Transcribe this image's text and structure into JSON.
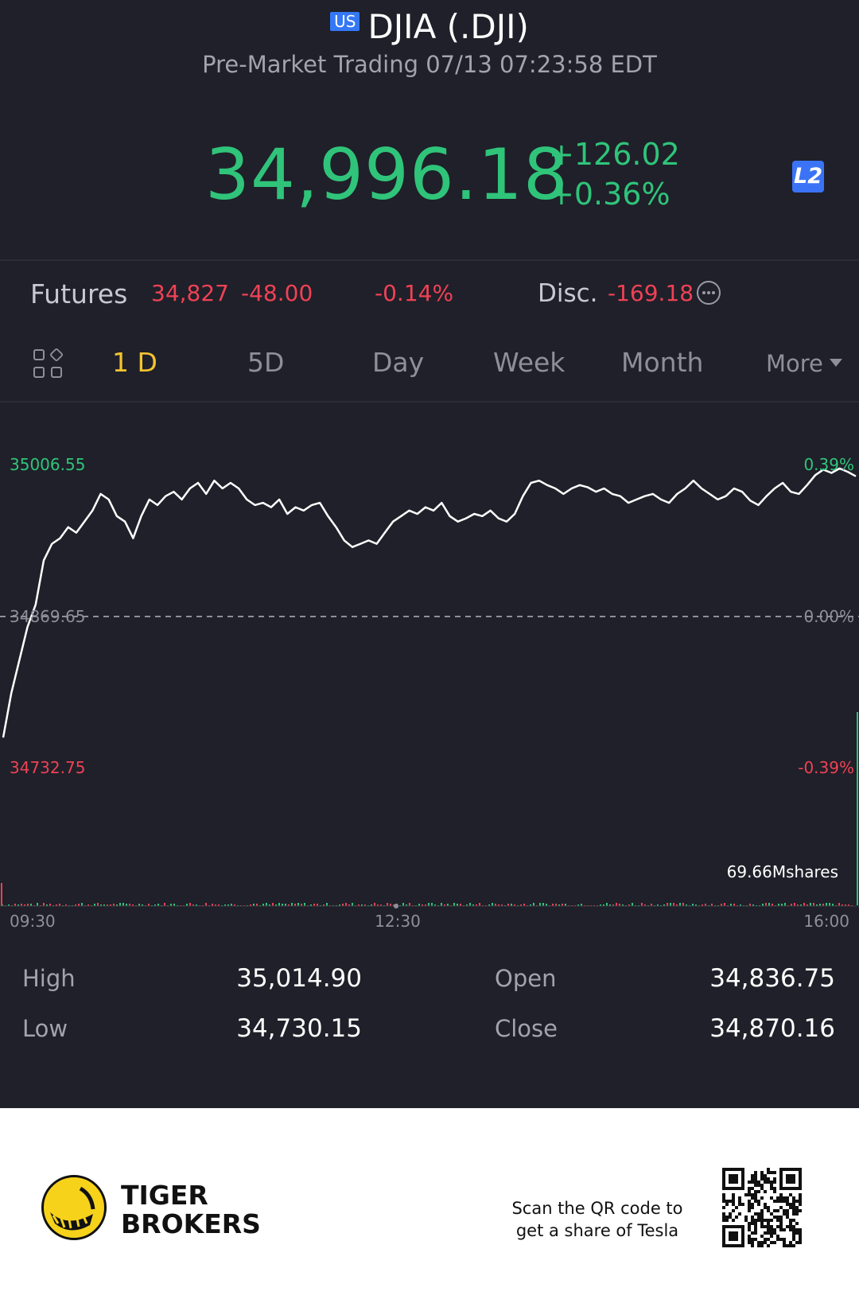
{
  "header": {
    "market_badge": "US",
    "title": "DJIA (.DJI)",
    "subtitle": "Pre-Market Trading 07/13 07:23:58 EDT",
    "price": "34,996.18",
    "change": "+126.02",
    "change_pct": "+0.36%",
    "l2_badge": "L2"
  },
  "futures": {
    "label": "Futures",
    "price": "34,827",
    "change": "-48.00",
    "change_pct": "-0.14%",
    "disc_label": "Disc.",
    "disc_value": "-169.18"
  },
  "tabs": {
    "items": [
      "1 D",
      "5D",
      "Day",
      "Week",
      "Month"
    ],
    "more": "More",
    "active": "1 D"
  },
  "chart_data": {
    "type": "line",
    "y_labels": {
      "high": "35006.55",
      "mid": "34869.65",
      "low": "34732.75",
      "high_pct": "0.39%",
      "mid_pct": "0.00%",
      "low_pct": "-0.39%"
    },
    "ylim": [
      34732.75,
      35006.55
    ],
    "reference_line": 34869.65,
    "volume_label": "69.66Mshares",
    "x_ticks": [
      "09:30",
      "12:30",
      "16:00"
    ],
    "series": [
      {
        "values": [
          34760,
          34800,
          34830,
          34860,
          34880,
          34920,
          34935,
          34940,
          34950,
          34945,
          34955,
          34965,
          34980,
          34975,
          34960,
          34955,
          34940,
          34960,
          34975,
          34970,
          34978,
          34982,
          34975,
          34985,
          34990,
          34980,
          34992,
          34985,
          34990,
          34985,
          34975,
          34970,
          34972,
          34968,
          34975,
          34962,
          34968,
          34965,
          34970,
          34972,
          34960,
          34950,
          34938,
          34932,
          34935,
          34938,
          34935,
          34945,
          34955,
          34960,
          34965,
          34962,
          34968,
          34965,
          34972,
          34960,
          34955,
          34958,
          34962,
          34960,
          34965,
          34958,
          34955,
          34962,
          34978,
          34990,
          34992,
          34988,
          34985,
          34980,
          34985,
          34988,
          34986,
          34982,
          34985,
          34980,
          34978,
          34972,
          34975,
          34978,
          34980,
          34975,
          34972,
          34980,
          34985,
          34992,
          34985,
          34980,
          34975,
          34978,
          34985,
          34982,
          34974,
          34970,
          34978,
          34985,
          34990,
          34982,
          34980,
          34988,
          34997,
          35002,
          34999,
          35003,
          35000,
          34996
        ]
      }
    ]
  },
  "stats": {
    "high_label": "High",
    "high": "35,014.90",
    "low_label": "Low",
    "low": "34,730.15",
    "open_label": "Open",
    "open": "34,836.75",
    "close_label": "Close",
    "close": "34,870.16"
  },
  "footer": {
    "brand_line1": "TIGER",
    "brand_line2": "BROKERS",
    "scan_line1": "Scan the QR code to",
    "scan_line2": "get a share of Tesla"
  },
  "colors": {
    "background": "#1f2029",
    "up": "#2fc47a",
    "down": "#f04155",
    "active_tab": "#f4c430",
    "badge_blue": "#3478f6"
  }
}
